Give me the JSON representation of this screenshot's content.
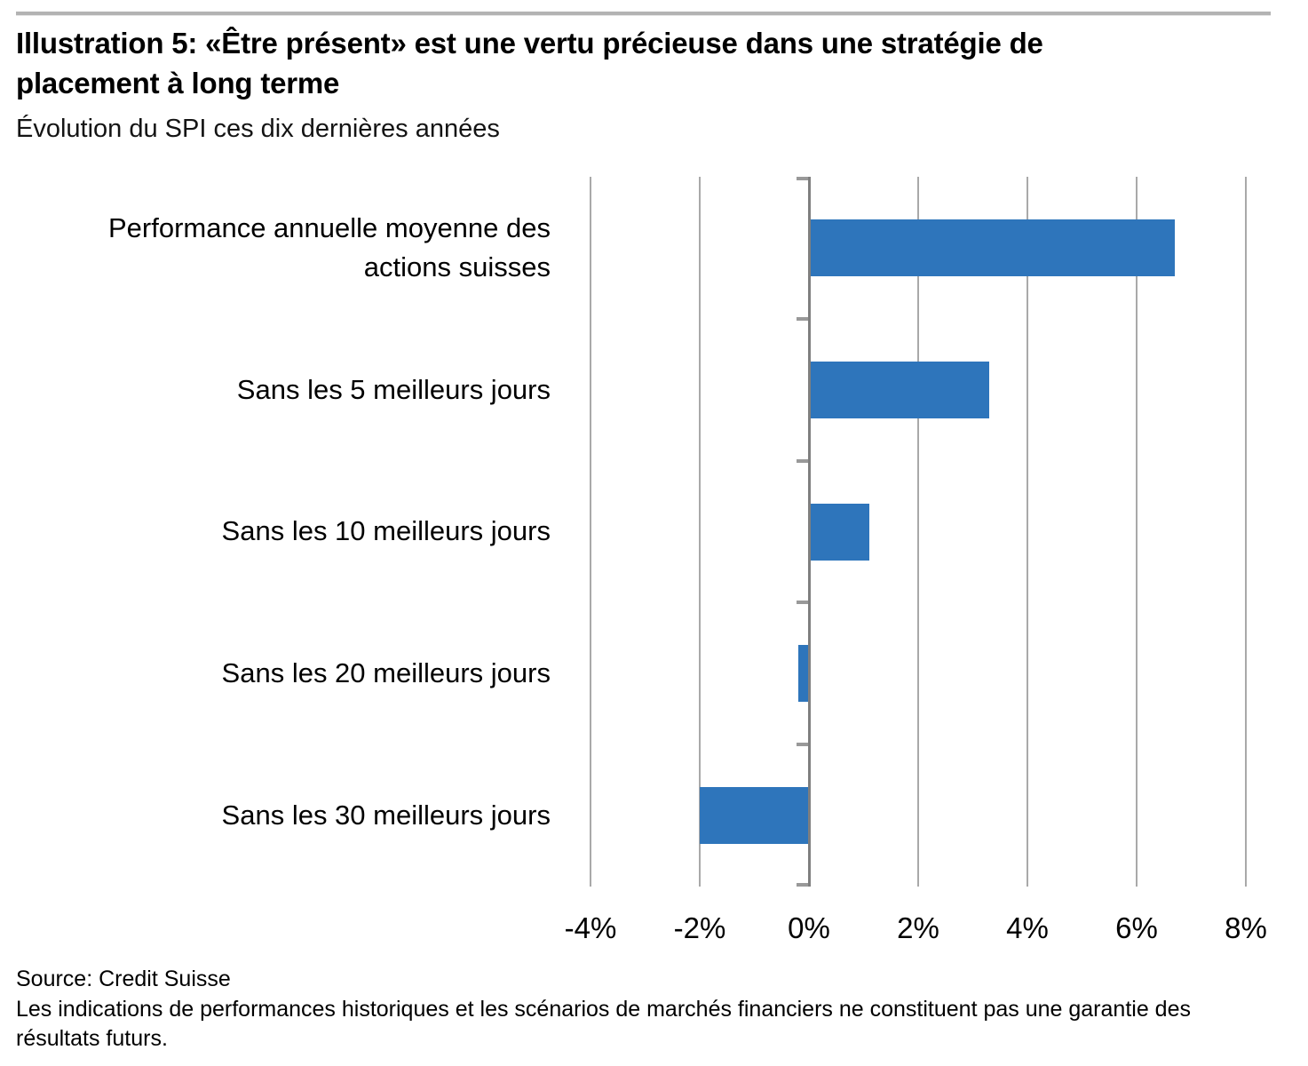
{
  "header": {
    "title": "Illustration 5: «Être présent» est une vertu précieuse dans une stratégie de\nplacement à long terme",
    "subtitle": "Évolution du SPI ces dix dernières années"
  },
  "chart_data": {
    "type": "bar",
    "orientation": "horizontal",
    "title": "Illustration 5: «Être présent» est une vertu précieuse dans une stratégie de placement à long terme",
    "subtitle": "Évolution du SPI ces dix dernières années",
    "categories": [
      "Performance annuelle moyenne des\nactions suisses",
      "Sans les 5 meilleurs jours",
      "Sans les 10 meilleurs jours",
      "Sans les 20 meilleurs jours",
      "Sans les 30 meilleurs jours"
    ],
    "values": [
      6.7,
      3.3,
      1.1,
      -0.2,
      -2.0
    ],
    "unit": "%",
    "xlim": [
      -4,
      8
    ],
    "x_ticks": [
      {
        "value": -4,
        "label": "-4%"
      },
      {
        "value": -2,
        "label": "-2%"
      },
      {
        "value": 0,
        "label": "0%"
      },
      {
        "value": 2,
        "label": "2%"
      },
      {
        "value": 4,
        "label": "4%"
      },
      {
        "value": 6,
        "label": "6%"
      },
      {
        "value": 8,
        "label": "8%"
      }
    ],
    "grid": true,
    "legend": false,
    "colors": {
      "bar": "#2E75BB",
      "gridline": "#A9A9A9",
      "axis": "#7F7F7F",
      "tick": "#999999",
      "text": "#000000",
      "rule": "#B3B3B3"
    }
  },
  "footer": {
    "source": "Source: Credit Suisse",
    "disclaimer": "Les indications de performances historiques et les scénarios de marchés financiers ne constituent pas une garantie des\nrésultats futurs."
  }
}
